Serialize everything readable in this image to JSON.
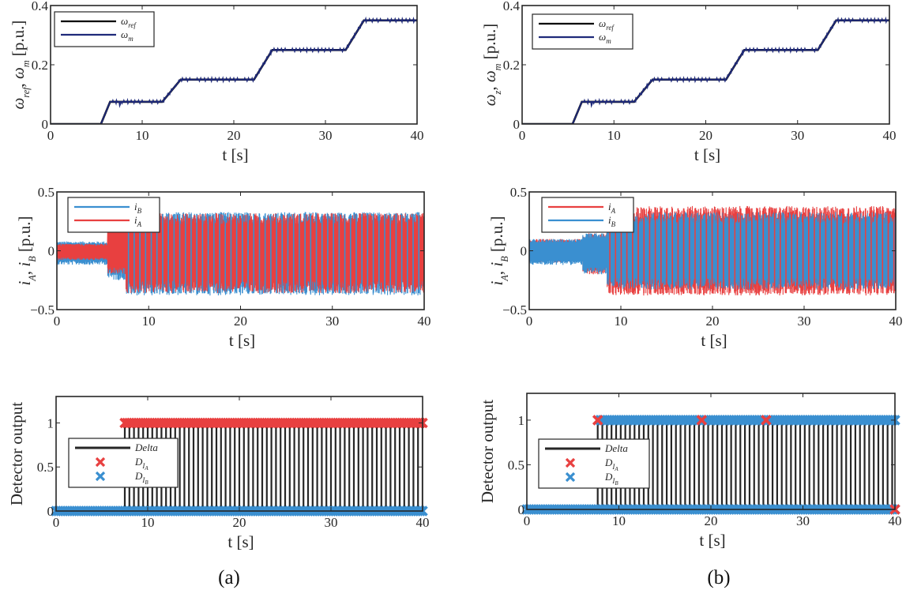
{
  "figure": {
    "captions": [
      "(a)",
      "(b)"
    ]
  },
  "colors": {
    "omega_ref": "#000000",
    "omega_m": "#1f2a7a",
    "i_A": "#e84040",
    "i_B": "#3a8fd0",
    "delta": "#262626",
    "D_IA": "#e84040",
    "D_IB": "#3a8fd0",
    "axes": "#262626"
  },
  "chart_data": [
    {
      "id": "a-speed",
      "panel": "a",
      "type": "line",
      "title": "",
      "xlabel": "t [s]",
      "ylabel": "ω_ref, ω_m [p.u.]",
      "xlim": [
        0,
        40
      ],
      "ylim": [
        0,
        0.4
      ],
      "xticks": [
        0,
        10,
        20,
        30,
        40
      ],
      "yticks": [
        0,
        0.2,
        0.4
      ],
      "xtick_labels": [
        "0",
        "10",
        "20",
        "30",
        "40"
      ],
      "ytick_labels": [
        "0",
        "0.2",
        "0.4"
      ],
      "legend": [
        "ω_ref",
        "ω_m"
      ],
      "legend_position": "top-left",
      "series": [
        {
          "name": "ω_ref",
          "x": [
            0,
            5.5,
            6.5,
            12.2,
            14.2,
            22.2,
            24.2,
            32.2,
            34.2,
            40
          ],
          "y": [
            0,
            0,
            0.075,
            0.075,
            0.15,
            0.15,
            0.25,
            0.25,
            0.35,
            0.35
          ]
        },
        {
          "name": "ω_m",
          "x": [
            0,
            5.5,
            6.5,
            12.2,
            14.2,
            22.2,
            24.2,
            32.2,
            34.2,
            40
          ],
          "y": [
            0,
            0,
            0.075,
            0.075,
            0.15,
            0.15,
            0.25,
            0.25,
            0.35,
            0.35
          ]
        }
      ]
    },
    {
      "id": "b-speed",
      "panel": "b",
      "type": "line",
      "title": "",
      "xlabel": "t [s]",
      "ylabel": "ω_z, ω_m [p.u.]",
      "xlim": [
        0,
        40
      ],
      "ylim": [
        0,
        0.4
      ],
      "xticks": [
        0,
        10,
        20,
        30,
        40
      ],
      "yticks": [
        0,
        0.2,
        0.4
      ],
      "xtick_labels": [
        "0",
        "10",
        "20",
        "30",
        "40"
      ],
      "ytick_labels": [
        "0",
        "0.2",
        "0.4"
      ],
      "legend": [
        "ω_ref",
        "ω_m"
      ],
      "legend_position": "top-left",
      "series": [
        {
          "name": "ω_ref",
          "x": [
            0,
            5.5,
            6.5,
            12.2,
            14.2,
            22.2,
            24.2,
            32.2,
            34.2,
            40
          ],
          "y": [
            0,
            0,
            0.075,
            0.075,
            0.15,
            0.15,
            0.25,
            0.25,
            0.35,
            0.35
          ]
        },
        {
          "name": "ω_m",
          "x": [
            0,
            5.5,
            6.5,
            12.2,
            14.2,
            22.2,
            24.2,
            32.2,
            34.2,
            40
          ],
          "y": [
            0,
            0,
            0.075,
            0.075,
            0.15,
            0.15,
            0.25,
            0.25,
            0.35,
            0.35
          ]
        }
      ]
    },
    {
      "id": "a-current",
      "panel": "a",
      "type": "line",
      "title": "",
      "xlabel": "t [s]",
      "ylabel": "i_A, i_B [p.u.]",
      "xlim": [
        0,
        40
      ],
      "ylim": [
        -0.5,
        0.5
      ],
      "xticks": [
        0,
        10,
        20,
        30,
        40
      ],
      "yticks": [
        -0.5,
        0,
        0.5
      ],
      "xtick_labels": [
        "0",
        "10",
        "20",
        "30",
        "40"
      ],
      "ytick_labels": [
        "−0.5",
        "0",
        "0.5"
      ],
      "legend": [
        "i_B",
        "i_A"
      ],
      "legend_position": "top-left",
      "series": [
        {
          "name": "i_B",
          "envelope": {
            "pre_fault": {
              "t": [
                0,
                5.5
              ],
              "min": -0.12,
              "max": 0.08
            },
            "transition": {
              "t": [
                5.5,
                7.5
              ],
              "min": -0.25,
              "max": 0.12
            },
            "steady": {
              "t": [
                7.5,
                40
              ],
              "min": -0.38,
              "max": 0.33
            }
          }
        },
        {
          "name": "i_A",
          "envelope": {
            "pre_fault": {
              "t": [
                0,
                5.5
              ],
              "min": -0.08,
              "max": 0.06
            },
            "transition": {
              "t": [
                5.5,
                7.5
              ],
              "min": -0.2,
              "max": 0.25
            },
            "steady": {
              "t": [
                7.5,
                40
              ],
              "min": -0.36,
              "max": 0.32
            }
          }
        }
      ]
    },
    {
      "id": "b-current",
      "panel": "b",
      "type": "line",
      "title": "",
      "xlabel": "t [s]",
      "ylabel": "i_A, i_B [p.u.]",
      "xlim": [
        0,
        40
      ],
      "ylim": [
        -0.5,
        0.5
      ],
      "xticks": [
        0,
        10,
        20,
        30,
        40
      ],
      "yticks": [
        -0.5,
        0,
        0.5
      ],
      "xtick_labels": [
        "0",
        "10",
        "20",
        "30",
        "40"
      ],
      "ytick_labels": [
        "−0.5",
        "0",
        "0.5"
      ],
      "legend": [
        "i_A",
        "i_B"
      ],
      "legend_position": "top-left",
      "series": [
        {
          "name": "i_A",
          "envelope": {
            "pre_fault": {
              "t": [
                0,
                5.8
              ],
              "min": -0.1,
              "max": 0.1
            },
            "transition": {
              "t": [
                5.8,
                8.5
              ],
              "min": -0.2,
              "max": 0.15
            },
            "steady": {
              "t": [
                8.5,
                40
              ],
              "min": -0.38,
              "max": 0.38
            }
          }
        },
        {
          "name": "i_B",
          "envelope": {
            "pre_fault": {
              "t": [
                0,
                5.8
              ],
              "min": -0.12,
              "max": 0.1
            },
            "transition": {
              "t": [
                5.8,
                8.5
              ],
              "min": -0.2,
              "max": 0.15
            },
            "steady": {
              "t": [
                8.5,
                40
              ],
              "min": -0.33,
              "max": 0.33
            }
          }
        }
      ]
    },
    {
      "id": "a-detector",
      "panel": "a",
      "type": "scatter",
      "title": "",
      "xlabel": "t [s]",
      "ylabel": "Detector output",
      "xlim": [
        0,
        40
      ],
      "ylim": [
        0,
        1.3
      ],
      "xticks": [
        0,
        10,
        20,
        30,
        40
      ],
      "yticks": [
        0,
        0.5,
        1
      ],
      "xtick_labels": [
        "0",
        "10",
        "20",
        "30",
        "40"
      ],
      "ytick_labels": [
        "0",
        "0.5",
        "1"
      ],
      "legend": [
        "Delta",
        "D_IA",
        "D_IB"
      ],
      "legend_position": "center-left",
      "series": [
        {
          "name": "Delta",
          "kind": "pulse-train",
          "t_start": 7.5,
          "t_end": 40,
          "pulse_period": 0.5,
          "high": 1,
          "low": 0
        },
        {
          "name": "D_IA",
          "kind": "markers",
          "value": 1,
          "t_start": 7.5,
          "t_end": 40,
          "spacing": 0.25
        },
        {
          "name": "D_IB",
          "kind": "markers",
          "value": 0,
          "t_start": 0,
          "t_end": 40,
          "spacing": 0.25
        }
      ]
    },
    {
      "id": "b-detector",
      "panel": "b",
      "type": "scatter",
      "title": "",
      "xlabel": "t [s]",
      "ylabel": "Detector output",
      "xlim": [
        0,
        40
      ],
      "ylim": [
        0,
        1.3
      ],
      "xticks": [
        0,
        10,
        20,
        30,
        40
      ],
      "yticks": [
        0,
        0.5,
        1
      ],
      "xtick_labels": [
        "0",
        "10",
        "20",
        "30",
        "40"
      ],
      "ytick_labels": [
        "0",
        "0.5",
        "1"
      ],
      "legend": [
        "Delta",
        "D_IA",
        "D_IB"
      ],
      "legend_position": "center-left",
      "series": [
        {
          "name": "Delta",
          "kind": "pulse-train",
          "t_start": 7.7,
          "t_end": 40,
          "pulse_period": 0.5,
          "high": 1,
          "low": 0
        },
        {
          "name": "D_IB",
          "kind": "markers",
          "value": 1,
          "t_start": 8.0,
          "t_end": 40,
          "spacing": 0.25
        },
        {
          "name": "D_IB_low",
          "kind": "markers",
          "value": 0,
          "t_start": 0,
          "t_end": 40,
          "spacing": 0.25
        },
        {
          "name": "D_IA",
          "kind": "points",
          "x": [
            7.7,
            19.0,
            26.0,
            40.0
          ],
          "y": [
            1,
            1,
            1,
            0
          ]
        }
      ]
    }
  ]
}
